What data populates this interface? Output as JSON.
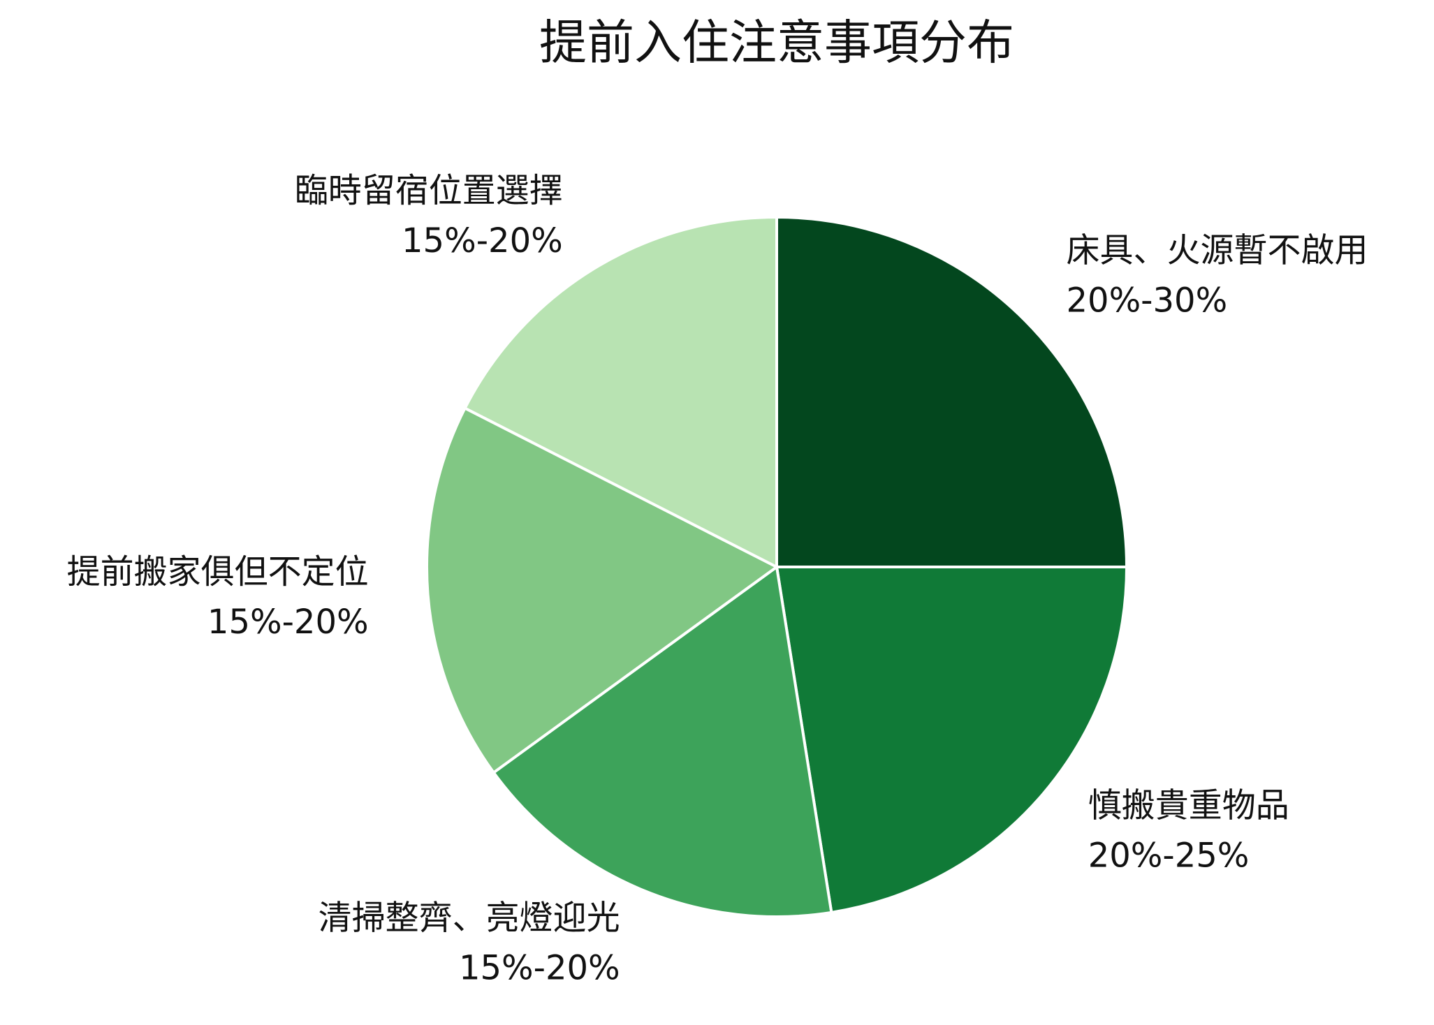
{
  "chart_data": {
    "type": "pie",
    "title": "提前入住注意事項分布",
    "categories": [
      "床具、火源暫不啟用",
      "慎搬貴重物品",
      "清掃整齊、亮燈迎光",
      "提前搬家俱但不定位",
      "臨時留宿位置選擇"
    ],
    "values": [
      25,
      22.5,
      17.5,
      17.5,
      17.5
    ],
    "value_labels": [
      "20%-30%",
      "20%-25%",
      "15%-20%",
      "15%-20%",
      "15%-20%"
    ],
    "colors": [
      "#03471e",
      "#107a37",
      "#3da35a",
      "#81c784",
      "#b8e3b2"
    ]
  }
}
